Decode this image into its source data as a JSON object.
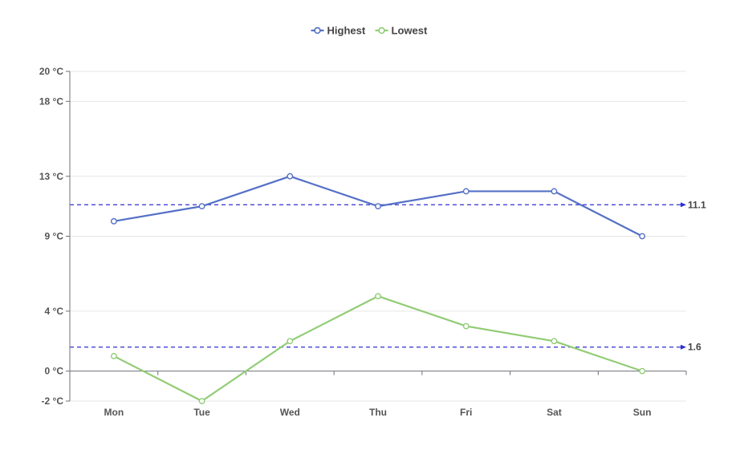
{
  "chart_data": {
    "type": "line",
    "categories": [
      "Mon",
      "Tue",
      "Wed",
      "Thu",
      "Fri",
      "Sat",
      "Sun"
    ],
    "series": [
      {
        "name": "Highest",
        "values": [
          10,
          11,
          13,
          11,
          12,
          12,
          9
        ],
        "color": "#5470c6"
      },
      {
        "name": "Lowest",
        "values": [
          1,
          -2,
          2,
          5,
          3,
          2,
          0
        ],
        "color": "#91cc75"
      }
    ],
    "y_ticks": [
      -2,
      0,
      4,
      9,
      13,
      18,
      20
    ],
    "y_tick_labels": [
      "-2 °C",
      "0 °C",
      "4 °C",
      "9 °C",
      "13 °C",
      "18 °C",
      "20 °C"
    ],
    "ylim": [
      -2,
      20
    ],
    "mark_lines": [
      {
        "value": 11.1,
        "label": "11.1",
        "color": "#2f2fd0"
      },
      {
        "value": 1.6,
        "label": "1.6",
        "color": "#2f2fd0"
      }
    ],
    "legend_position": "top-center",
    "grid": true,
    "title": "",
    "xlabel": "",
    "ylabel": ""
  }
}
